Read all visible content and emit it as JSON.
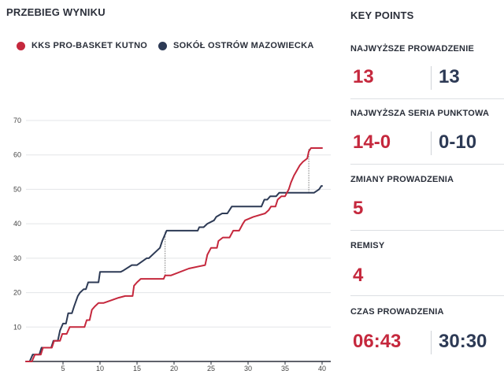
{
  "left_title": "PRZEBIEG WYNIKU",
  "right_title": "KEY POINTS",
  "colors": {
    "team_a": "#c5283d",
    "team_b": "#2d3a55",
    "grid": "#e3e5e8"
  },
  "chart_data": {
    "type": "line",
    "title": "PRZEBIEG WYNIKU",
    "xlim": [
      0,
      40
    ],
    "ylim": [
      0,
      70
    ],
    "x_ticks": [
      5,
      10,
      15,
      20,
      25,
      30,
      35,
      40
    ],
    "y_ticks": [
      10,
      20,
      30,
      40,
      50,
      60,
      70
    ],
    "series": [
      {
        "name": "KKS PRO-BASKET KUTNO",
        "color": "#c5283d",
        "points": [
          [
            0,
            0
          ],
          [
            0.8,
            0
          ],
          [
            1.2,
            2
          ],
          [
            2,
            2
          ],
          [
            2.3,
            4
          ],
          [
            3.5,
            4
          ],
          [
            3.8,
            6
          ],
          [
            4.6,
            6
          ],
          [
            4.9,
            8
          ],
          [
            5.5,
            8
          ],
          [
            5.9,
            10
          ],
          [
            7.9,
            10
          ],
          [
            8.2,
            12
          ],
          [
            8.6,
            12
          ],
          [
            8.9,
            15
          ],
          [
            9.3,
            16
          ],
          [
            9.8,
            17
          ],
          [
            10.5,
            17
          ],
          [
            12.5,
            18.5
          ],
          [
            13.4,
            19
          ],
          [
            14.4,
            19
          ],
          [
            14.6,
            22
          ],
          [
            15,
            23
          ],
          [
            15.5,
            24
          ],
          [
            18.6,
            24
          ],
          [
            18.8,
            25
          ],
          [
            19.6,
            25
          ],
          [
            22,
            27
          ],
          [
            24.2,
            28
          ],
          [
            24.5,
            31
          ],
          [
            25,
            33
          ],
          [
            25.8,
            33
          ],
          [
            26,
            35
          ],
          [
            26.6,
            36
          ],
          [
            27.5,
            36
          ],
          [
            28,
            38
          ],
          [
            28.8,
            38
          ],
          [
            29.3,
            40
          ],
          [
            29.6,
            41
          ],
          [
            30.7,
            42
          ],
          [
            32.3,
            43
          ],
          [
            32.8,
            44
          ],
          [
            33.1,
            45
          ],
          [
            33.7,
            45
          ],
          [
            34,
            47
          ],
          [
            34.5,
            48
          ],
          [
            35,
            48
          ],
          [
            35.5,
            50
          ],
          [
            35.8,
            52
          ],
          [
            36.2,
            54
          ],
          [
            37,
            57
          ],
          [
            37.4,
            58
          ],
          [
            38,
            59
          ],
          [
            38.2,
            61
          ],
          [
            38.5,
            62
          ],
          [
            40,
            62
          ]
        ]
      },
      {
        "name": "SOKÓŁ OSTRÓW MAZOWIECKA",
        "color": "#2d3a55",
        "points": [
          [
            0,
            0
          ],
          [
            0.5,
            0
          ],
          [
            0.9,
            2
          ],
          [
            1.8,
            2
          ],
          [
            2.1,
            4
          ],
          [
            3.4,
            4
          ],
          [
            3.7,
            6
          ],
          [
            4.3,
            6
          ],
          [
            4.6,
            9
          ],
          [
            5,
            11
          ],
          [
            5.4,
            11
          ],
          [
            5.7,
            14
          ],
          [
            6.2,
            14
          ],
          [
            6.5,
            16
          ],
          [
            7,
            19
          ],
          [
            7.3,
            20
          ],
          [
            7.8,
            21
          ],
          [
            8.1,
            21
          ],
          [
            8.4,
            23
          ],
          [
            9.8,
            23
          ],
          [
            10,
            26
          ],
          [
            12.8,
            26
          ],
          [
            13.2,
            26.5
          ],
          [
            14.3,
            28
          ],
          [
            15,
            28
          ],
          [
            16.3,
            30
          ],
          [
            16.6,
            30
          ],
          [
            18.1,
            33
          ],
          [
            18.4,
            35
          ],
          [
            19,
            38
          ],
          [
            19.2,
            38
          ],
          [
            23.2,
            38
          ],
          [
            23.4,
            39
          ],
          [
            24,
            39
          ],
          [
            24.5,
            40
          ],
          [
            25.4,
            41
          ],
          [
            25.7,
            42
          ],
          [
            26.5,
            43
          ],
          [
            27.2,
            43
          ],
          [
            27.5,
            44
          ],
          [
            27.8,
            45
          ],
          [
            31.8,
            45
          ],
          [
            32.2,
            47
          ],
          [
            32.6,
            47
          ],
          [
            33,
            48
          ],
          [
            33.8,
            48
          ],
          [
            34.2,
            49
          ],
          [
            38.9,
            49
          ],
          [
            39.6,
            50
          ],
          [
            39.9,
            51
          ],
          [
            40,
            51
          ]
        ]
      }
    ],
    "lead_markers": [
      {
        "x": 18.8,
        "from": 25,
        "to": 38
      },
      {
        "x": 38.2,
        "from": 49,
        "to": 62
      }
    ]
  },
  "key_points": [
    {
      "label": "NAJWYŻSZE PROWADZENIE",
      "a": "13",
      "b": "13"
    },
    {
      "label": "NAJWYŻSZA SERIA PUNKTOWA",
      "a": "14-0",
      "b": "0-10"
    },
    {
      "label": "ZMIANY PROWADZENIA",
      "a": "5"
    },
    {
      "label": "REMISY",
      "a": "4"
    },
    {
      "label": "CZAS PROWADZENIA",
      "a": "06:43",
      "b": "30:30"
    }
  ]
}
